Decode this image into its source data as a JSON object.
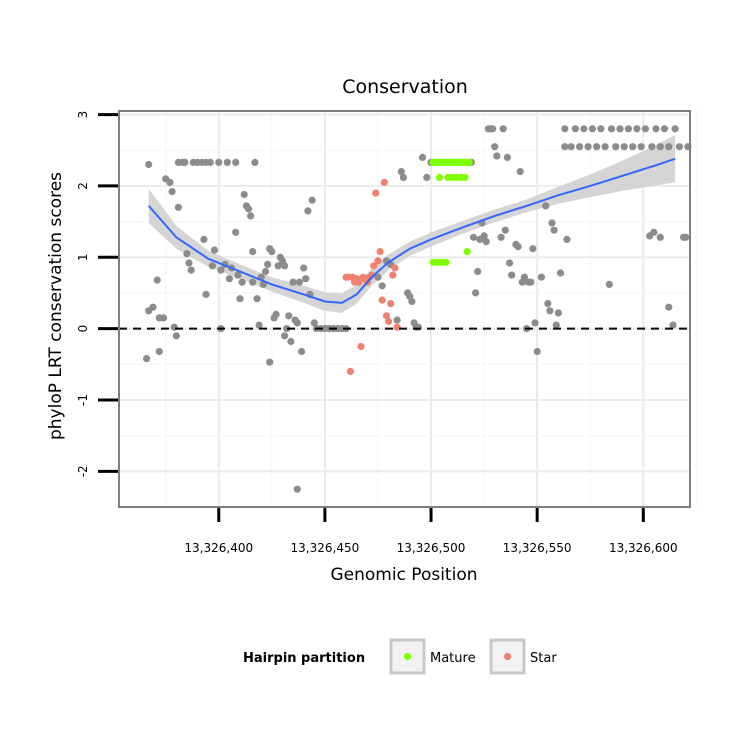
{
  "chart_data": {
    "type": "scatter",
    "title": "Conservation",
    "xlabel": "Genomic Position",
    "ylabel": "phyloP LRT conservation scores",
    "xlim": [
      13326353,
      13326622
    ],
    "ylim": [
      -2.5,
      3.05
    ],
    "x_ticks": [
      13326400,
      13326450,
      13326500,
      13326550,
      13326600
    ],
    "x_tick_labels": [
      "13,326,400",
      "13,326,450",
      "13,326,500",
      "13,326,550",
      "13,326,600"
    ],
    "y_ticks": [
      -2,
      -1,
      0,
      1,
      2,
      3
    ],
    "y_tick_labels": [
      "-2",
      "-1",
      "0",
      "1",
      "2",
      "3"
    ],
    "reference_line": {
      "y": 0,
      "style": "dashed"
    },
    "legend": {
      "title": "Hairpin partition",
      "position": "bottom",
      "entries": [
        {
          "label": "Mature",
          "color": "#7FFF00"
        },
        {
          "label": "Star",
          "color": "#F08070"
        }
      ]
    },
    "colors": {
      "other": "#8C8C8C",
      "Mature": "#7FFF00",
      "Star": "#F08070",
      "smooth": "#3366FF",
      "band": "#D3D3D3"
    },
    "smooth": {
      "x": [
        13326367,
        13326380,
        13326395,
        13326410,
        13326425,
        13326440,
        13326450,
        13326458,
        13326465,
        13326472,
        13326480,
        13326490,
        13326500,
        13326515,
        13326530,
        13326545,
        13326560,
        13326575,
        13326590,
        13326605,
        13326615
      ],
      "y": [
        1.72,
        1.28,
        0.98,
        0.8,
        0.62,
        0.48,
        0.38,
        0.36,
        0.48,
        0.72,
        0.93,
        1.12,
        1.25,
        1.42,
        1.58,
        1.72,
        1.87,
        2.0,
        2.14,
        2.28,
        2.38
      ],
      "lower": [
        1.48,
        1.12,
        0.87,
        0.7,
        0.52,
        0.36,
        0.25,
        0.22,
        0.35,
        0.6,
        0.82,
        1.02,
        1.15,
        1.33,
        1.49,
        1.63,
        1.75,
        1.84,
        1.93,
        2.0,
        2.05
      ],
      "upper": [
        1.96,
        1.44,
        1.09,
        0.9,
        0.72,
        0.6,
        0.51,
        0.5,
        0.61,
        0.84,
        1.04,
        1.22,
        1.35,
        1.51,
        1.67,
        1.81,
        1.99,
        2.16,
        2.35,
        2.56,
        2.71
      ]
    },
    "series": [
      {
        "name": "Other",
        "points": [
          [
            13326367,
            2.3
          ],
          [
            13326366,
            -0.42
          ],
          [
            13326367,
            0.25
          ],
          [
            13326369,
            0.3
          ],
          [
            13326371,
            0.68
          ],
          [
            13326372,
            0.15
          ],
          [
            13326372,
            -0.32
          ],
          [
            13326374,
            0.15
          ],
          [
            13326375,
            2.1
          ],
          [
            13326377,
            2.05
          ],
          [
            13326378,
            1.92
          ],
          [
            13326379,
            0.02
          ],
          [
            13326380,
            -0.1
          ],
          [
            13326381,
            1.7
          ],
          [
            13326381,
            2.33
          ],
          [
            13326383,
            2.33
          ],
          [
            13326384,
            2.33
          ],
          [
            13326385,
            1.05
          ],
          [
            13326386,
            0.92
          ],
          [
            13326387,
            0.82
          ],
          [
            13326388,
            2.33
          ],
          [
            13326390,
            2.33
          ],
          [
            13326392,
            2.33
          ],
          [
            13326393,
            1.25
          ],
          [
            13326394,
            0.48
          ],
          [
            13326394,
            2.33
          ],
          [
            13326396,
            2.33
          ],
          [
            13326397,
            0.88
          ],
          [
            13326398,
            1.1
          ],
          [
            13326400,
            2.33
          ],
          [
            13326401,
            0.0
          ],
          [
            13326401,
            0.82
          ],
          [
            13326403,
            0.9
          ],
          [
            13326404,
            2.33
          ],
          [
            13326405,
            0.7
          ],
          [
            13326406,
            0.85
          ],
          [
            13326408,
            2.33
          ],
          [
            13326408,
            1.35
          ],
          [
            13326409,
            0.75
          ],
          [
            13326410,
            0.42
          ],
          [
            13326411,
            0.65
          ],
          [
            13326412,
            1.88
          ],
          [
            13326413,
            1.72
          ],
          [
            13326414,
            1.68
          ],
          [
            13326415,
            1.58
          ],
          [
            13326416,
            1.08
          ],
          [
            13326416,
            0.65
          ],
          [
            13326417,
            2.33
          ],
          [
            13326418,
            0.42
          ],
          [
            13326419,
            0.05
          ],
          [
            13326420,
            0.72
          ],
          [
            13326421,
            0.62
          ],
          [
            13326422,
            0.8
          ],
          [
            13326423,
            0.9
          ],
          [
            13326424,
            1.12
          ],
          [
            13326424,
            -0.47
          ],
          [
            13326425,
            1.08
          ],
          [
            13326426,
            0.15
          ],
          [
            13326427,
            0.2
          ],
          [
            13326428,
            0.88
          ],
          [
            13326429,
            1.0
          ],
          [
            13326430,
            0.95
          ],
          [
            13326431,
            0.88
          ],
          [
            13326431,
            -0.1
          ],
          [
            13326432,
            0.0
          ],
          [
            13326433,
            0.18
          ],
          [
            13326434,
            -0.18
          ],
          [
            13326435,
            0.65
          ],
          [
            13326436,
            0.12
          ],
          [
            13326437,
            -2.25
          ],
          [
            13326437,
            0.08
          ],
          [
            13326438,
            0.65
          ],
          [
            13326439,
            -0.32
          ],
          [
            13326440,
            0.85
          ],
          [
            13326441,
            0.7
          ],
          [
            13326442,
            1.65
          ],
          [
            13326443,
            0.48
          ],
          [
            13326444,
            1.8
          ],
          [
            13326445,
            0.08
          ],
          [
            13326446,
            0.0
          ],
          [
            13326448,
            0.0
          ],
          [
            13326450,
            0.0
          ],
          [
            13326452,
            0.0
          ],
          [
            13326454,
            0.0
          ],
          [
            13326456,
            0.0
          ],
          [
            13326458,
            0.0
          ],
          [
            13326460,
            0.0
          ],
          [
            13326475,
            0.72
          ],
          [
            13326477,
            0.6
          ],
          [
            13326479,
            0.95
          ],
          [
            13326481,
            0.9
          ],
          [
            13326484,
            0.12
          ],
          [
            13326486,
            2.2
          ],
          [
            13326487,
            2.12
          ],
          [
            13326489,
            0.5
          ],
          [
            13326490,
            0.45
          ],
          [
            13326491,
            0.38
          ],
          [
            13326492,
            0.08
          ],
          [
            13326493,
            0.02
          ],
          [
            13326494,
            0.02
          ],
          [
            13326496,
            2.4
          ],
          [
            13326498,
            2.12
          ],
          [
            13326500,
            2.33
          ],
          [
            13326519,
            2.33
          ],
          [
            13326520,
            1.28
          ],
          [
            13326521,
            0.5
          ],
          [
            13326522,
            0.8
          ],
          [
            13326523,
            1.25
          ],
          [
            13326524,
            1.48
          ],
          [
            13326525,
            1.3
          ],
          [
            13326526,
            1.22
          ],
          [
            13326527,
            2.8
          ],
          [
            13326528,
            2.8
          ],
          [
            13326529,
            2.8
          ],
          [
            13326530,
            2.55
          ],
          [
            13326531,
            2.42
          ],
          [
            13326533,
            1.28
          ],
          [
            13326534,
            2.8
          ],
          [
            13326535,
            1.38
          ],
          [
            13326536,
            2.4
          ],
          [
            13326537,
            0.92
          ],
          [
            13326538,
            0.75
          ],
          [
            13326540,
            1.18
          ],
          [
            13326541,
            1.15
          ],
          [
            13326542,
            2.2
          ],
          [
            13326543,
            0.65
          ],
          [
            13326544,
            0.72
          ],
          [
            13326545,
            0.0
          ],
          [
            13326546,
            0.65
          ],
          [
            13326547,
            0.65
          ],
          [
            13326548,
            1.12
          ],
          [
            13326549,
            0.08
          ],
          [
            13326550,
            -0.32
          ],
          [
            13326552,
            0.72
          ],
          [
            13326554,
            1.72
          ],
          [
            13326555,
            0.35
          ],
          [
            13326556,
            0.25
          ],
          [
            13326557,
            1.48
          ],
          [
            13326558,
            1.38
          ],
          [
            13326559,
            0.05
          ],
          [
            13326560,
            0.22
          ],
          [
            13326561,
            0.78
          ],
          [
            13326563,
            2.55
          ],
          [
            13326563,
            2.8
          ],
          [
            13326564,
            1.25
          ],
          [
            13326566,
            2.55
          ],
          [
            13326568,
            2.8
          ],
          [
            13326570,
            2.55
          ],
          [
            13326572,
            2.8
          ],
          [
            13326574,
            2.55
          ],
          [
            13326576,
            2.8
          ],
          [
            13326578,
            2.55
          ],
          [
            13326580,
            2.8
          ],
          [
            13326582,
            2.55
          ],
          [
            13326584,
            0.62
          ],
          [
            13326585,
            2.8
          ],
          [
            13326587,
            2.55
          ],
          [
            13326589,
            2.8
          ],
          [
            13326591,
            2.55
          ],
          [
            13326593,
            2.8
          ],
          [
            13326595,
            2.55
          ],
          [
            13326597,
            2.8
          ],
          [
            13326599,
            2.55
          ],
          [
            13326601,
            2.8
          ],
          [
            13326603,
            1.3
          ],
          [
            13326604,
            2.55
          ],
          [
            13326605,
            1.35
          ],
          [
            13326606,
            2.8
          ],
          [
            13326608,
            1.28
          ],
          [
            13326608,
            2.55
          ],
          [
            13326610,
            2.8
          ],
          [
            13326612,
            2.55
          ],
          [
            13326612,
            0.3
          ],
          [
            13326614,
            0.05
          ],
          [
            13326615,
            2.8
          ],
          [
            13326617,
            2.55
          ],
          [
            13326619,
            1.28
          ],
          [
            13326620,
            1.28
          ],
          [
            13326621,
            2.55
          ]
        ]
      },
      {
        "name": "Mature",
        "points": [
          [
            13326501,
            2.33
          ],
          [
            13326502,
            2.33
          ],
          [
            13326503,
            2.33
          ],
          [
            13326504,
            2.33
          ],
          [
            13326505,
            2.33
          ],
          [
            13326506,
            2.33
          ],
          [
            13326507,
            2.33
          ],
          [
            13326508,
            2.33
          ],
          [
            13326509,
            2.33
          ],
          [
            13326510,
            2.33
          ],
          [
            13326511,
            2.33
          ],
          [
            13326512,
            2.33
          ],
          [
            13326513,
            2.33
          ],
          [
            13326514,
            2.33
          ],
          [
            13326515,
            2.33
          ],
          [
            13326516,
            2.33
          ],
          [
            13326517,
            2.33
          ],
          [
            13326518,
            2.33
          ],
          [
            13326504,
            2.12
          ],
          [
            13326508,
            2.12
          ],
          [
            13326510,
            2.12
          ],
          [
            13326512,
            2.12
          ],
          [
            13326514,
            2.12
          ],
          [
            13326516,
            2.12
          ],
          [
            13326501,
            0.93
          ],
          [
            13326503,
            0.93
          ],
          [
            13326505,
            0.93
          ],
          [
            13326507,
            0.93
          ],
          [
            13326517,
            1.08
          ]
        ]
      },
      {
        "name": "Star",
        "points": [
          [
            13326460,
            0.72
          ],
          [
            13326461,
            0.72
          ],
          [
            13326462,
            -0.6
          ],
          [
            13326463,
            0.72
          ],
          [
            13326464,
            0.65
          ],
          [
            13326465,
            0.7
          ],
          [
            13326466,
            0.65
          ],
          [
            13326467,
            -0.25
          ],
          [
            13326468,
            0.72
          ],
          [
            13326469,
            0.7
          ],
          [
            13326470,
            0.65
          ],
          [
            13326471,
            0.72
          ],
          [
            13326472,
            0.75
          ],
          [
            13326473,
            0.88
          ],
          [
            13326474,
            1.9
          ],
          [
            13326475,
            0.95
          ],
          [
            13326476,
            1.08
          ],
          [
            13326477,
            0.4
          ],
          [
            13326478,
            2.05
          ],
          [
            13326479,
            0.18
          ],
          [
            13326480,
            0.1
          ],
          [
            13326481,
            0.35
          ],
          [
            13326482,
            0.75
          ],
          [
            13326483,
            0.85
          ],
          [
            13326484,
            0.02
          ]
        ]
      }
    ]
  }
}
